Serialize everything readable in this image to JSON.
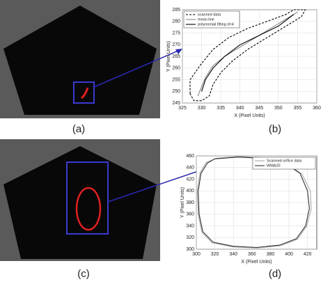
{
  "chart_data": [
    {
      "type": "line",
      "xlabel": "X (Pixel Units)",
      "ylabel": "Y (Pixel Units)",
      "xlim": [
        325,
        360
      ],
      "xticks": [
        325,
        330,
        335,
        340,
        345,
        350,
        355,
        360
      ],
      "ylim": [
        245,
        285
      ],
      "yticks": [
        245,
        250,
        255,
        260,
        265,
        270,
        275,
        280,
        285
      ],
      "grid": true,
      "legend": "top-left",
      "series": [
        {
          "name": "scanned data",
          "color": "#000000",
          "style": "dashed",
          "x": [
            327,
            327,
            330,
            333,
            337,
            342,
            347,
            352,
            354,
            357,
            356,
            353,
            350,
            346,
            342,
            338,
            335,
            333,
            332,
            330,
            328,
            327
          ],
          "values": [
            249,
            255,
            262,
            268,
            273,
            277,
            280,
            283,
            285,
            285,
            282,
            279,
            276,
            272,
            268,
            263,
            258,
            253,
            248,
            246,
            246,
            249
          ]
        },
        {
          "name": "mean line",
          "color": "#888888",
          "style": "solid",
          "x": [
            329,
            330,
            331,
            333,
            336,
            340,
            344,
            348,
            352,
            355
          ],
          "values": [
            248,
            252,
            256,
            261,
            265,
            269,
            273,
            277,
            281,
            284
          ]
        },
        {
          "name": "polynomial fitting d=4",
          "color": "#000000",
          "style": "solid",
          "x": [
            330,
            331,
            333,
            336,
            340,
            345,
            350,
            354
          ],
          "values": [
            250,
            255,
            260,
            265,
            270,
            274,
            278,
            283
          ]
        }
      ]
    },
    {
      "type": "line",
      "xlabel": "X (Pixel Units)",
      "ylabel": "Y (Pixel Units)",
      "xlim": [
        300,
        430
      ],
      "xticks": [
        300,
        320,
        340,
        360,
        380,
        400,
        420
      ],
      "ylim": [
        300,
        460
      ],
      "yticks": [
        300,
        320,
        340,
        360,
        380,
        400,
        420,
        440,
        460
      ],
      "grid": true,
      "legend": "top-right",
      "series": [
        {
          "name": "Scanned orifice data",
          "color": "#aaaaaa",
          "style": "solid",
          "x": [
            322,
            346,
            371,
            397,
            414,
            423,
            424,
            419,
            409,
            391,
            365,
            339,
            317,
            306,
            302,
            301,
            304,
            311,
            322
          ],
          "values": [
            456,
            459,
            457,
            448,
            429,
            400,
            369,
            339,
            317,
            306,
            302,
            304,
            311,
            329,
            360,
            400,
            431,
            449,
            456
          ]
        },
        {
          "name": "WMA20",
          "color": "#333333",
          "style": "solid",
          "x": [
            320,
            345,
            370,
            395,
            412,
            420,
            422,
            418,
            408,
            390,
            365,
            340,
            318,
            307,
            303,
            302,
            305,
            312,
            320
          ],
          "values": [
            455,
            458,
            456,
            448,
            430,
            400,
            370,
            340,
            318,
            307,
            303,
            305,
            312,
            330,
            360,
            400,
            430,
            448,
            455
          ]
        }
      ]
    }
  ],
  "panels": [
    "(a)",
    "(b)",
    "(c)",
    "(d)"
  ]
}
